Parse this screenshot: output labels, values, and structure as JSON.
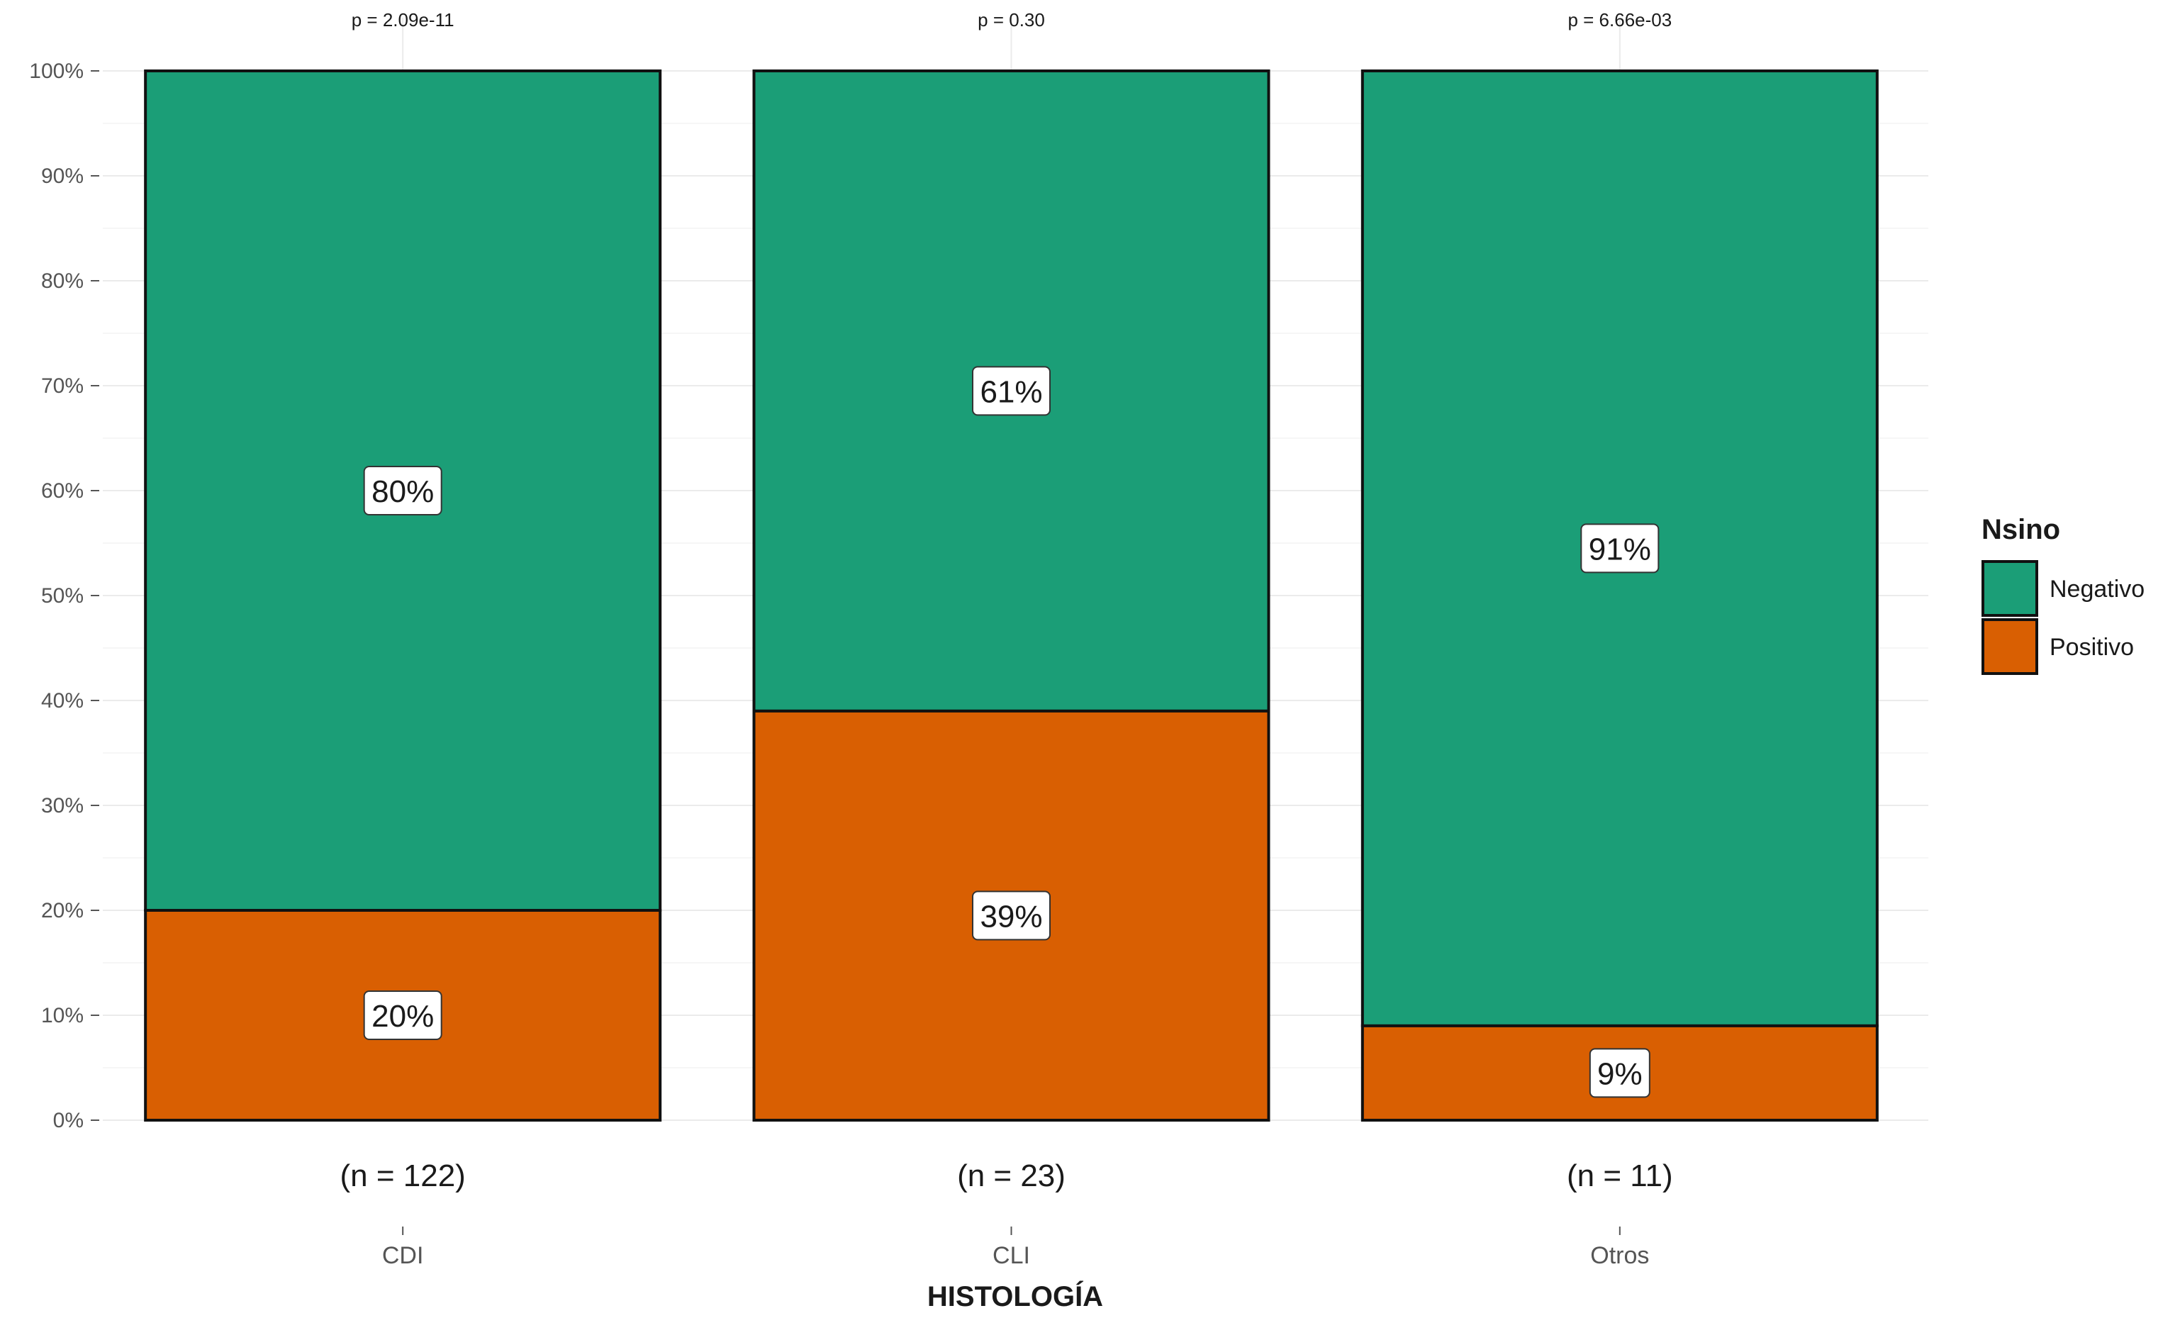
{
  "chart_data": {
    "type": "bar",
    "stacked": true,
    "categories": [
      "CDI",
      "CLI",
      "Otros"
    ],
    "series": [
      {
        "name": "Positivo",
        "color": "#D95F02",
        "values": [
          20,
          39,
          9
        ],
        "labels": [
          "20%",
          "39%",
          "9%"
        ]
      },
      {
        "name": "Negativo",
        "color": "#1B9E77",
        "values": [
          80,
          61,
          91
        ],
        "labels": [
          "80%",
          "61%",
          "91%"
        ]
      }
    ],
    "n_labels": [
      "(n = 122)",
      "(n = 23)",
      "(n = 11)"
    ],
    "p_labels": [
      "p = 2.09e-11",
      "p = 0.30",
      "p = 6.66e-03"
    ],
    "xlabel": "HISTOLOGÍA",
    "ylabel": "",
    "ylim": [
      0,
      100
    ],
    "yticks": [
      0,
      10,
      20,
      30,
      40,
      50,
      60,
      70,
      80,
      90,
      100
    ],
    "ytick_labels": [
      "0%",
      "10%",
      "20%",
      "30%",
      "40%",
      "50%",
      "60%",
      "70%",
      "80%",
      "90%",
      "100%"
    ],
    "grid": true,
    "legend": {
      "title": "Nsino",
      "placement": "right",
      "entries": [
        {
          "name": "Negativo",
          "color": "#1B9E77"
        },
        {
          "name": "Positivo",
          "color": "#D95F02"
        }
      ]
    }
  }
}
